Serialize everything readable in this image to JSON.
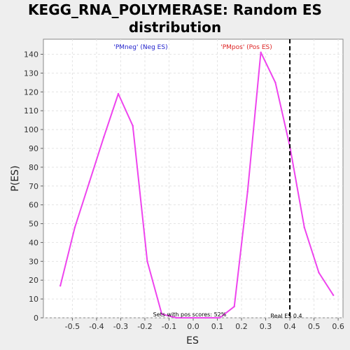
{
  "chart_data": {
    "type": "line",
    "title_line1": "KEGG_RNA_POLYMERASE: Random ES",
    "title_line2": "distribution",
    "xlabel": "ES",
    "ylabel": "P(ES)",
    "xlim": [
      -0.62,
      0.62
    ],
    "ylim": [
      0,
      148
    ],
    "x_ticks": [
      "-0.5",
      "-0.4",
      "-0.3",
      "-0.2",
      "-0.1",
      "0.0",
      "0.1",
      "0.2",
      "0.3",
      "0.4",
      "0.5",
      "0.6"
    ],
    "x_tick_values": [
      -0.5,
      -0.4,
      -0.3,
      -0.2,
      -0.1,
      0.0,
      0.1,
      0.2,
      0.3,
      0.4,
      0.5,
      0.6
    ],
    "y_ticks": [
      "0",
      "10",
      "20",
      "30",
      "40",
      "50",
      "60",
      "70",
      "80",
      "90",
      "100",
      "110",
      "120",
      "130",
      "140"
    ],
    "y_tick_values": [
      0,
      10,
      20,
      30,
      40,
      50,
      60,
      70,
      80,
      90,
      100,
      110,
      120,
      130,
      140
    ],
    "grid": true,
    "series": [
      {
        "color": "#ee44ee",
        "x": [
          -0.55,
          -0.49,
          -0.43,
          -0.37,
          -0.31,
          -0.25,
          -0.19,
          -0.13,
          -0.07,
          -0.01,
          0.05,
          0.11,
          0.17,
          0.225,
          0.28,
          0.34,
          0.4,
          0.46,
          0.52,
          0.58
        ],
        "y": [
          17,
          48,
          72,
          96,
          119,
          102,
          30,
          2,
          0,
          0,
          0,
          0,
          6,
          67,
          141,
          125,
          91,
          48,
          24,
          12
        ]
      }
    ],
    "real_es_value": 0.4,
    "annotations": {
      "neg_label": "'PMneg' (Neg ES)",
      "pos_label": "'PMpos' (Pos ES)",
      "sets_label": "Sets with pos scores: 52%",
      "real_es_label": "Real ES 0.4"
    },
    "colors": {
      "neg_label": "#2222cc",
      "pos_label": "#dd2222",
      "real_es_line": "#000000"
    }
  }
}
